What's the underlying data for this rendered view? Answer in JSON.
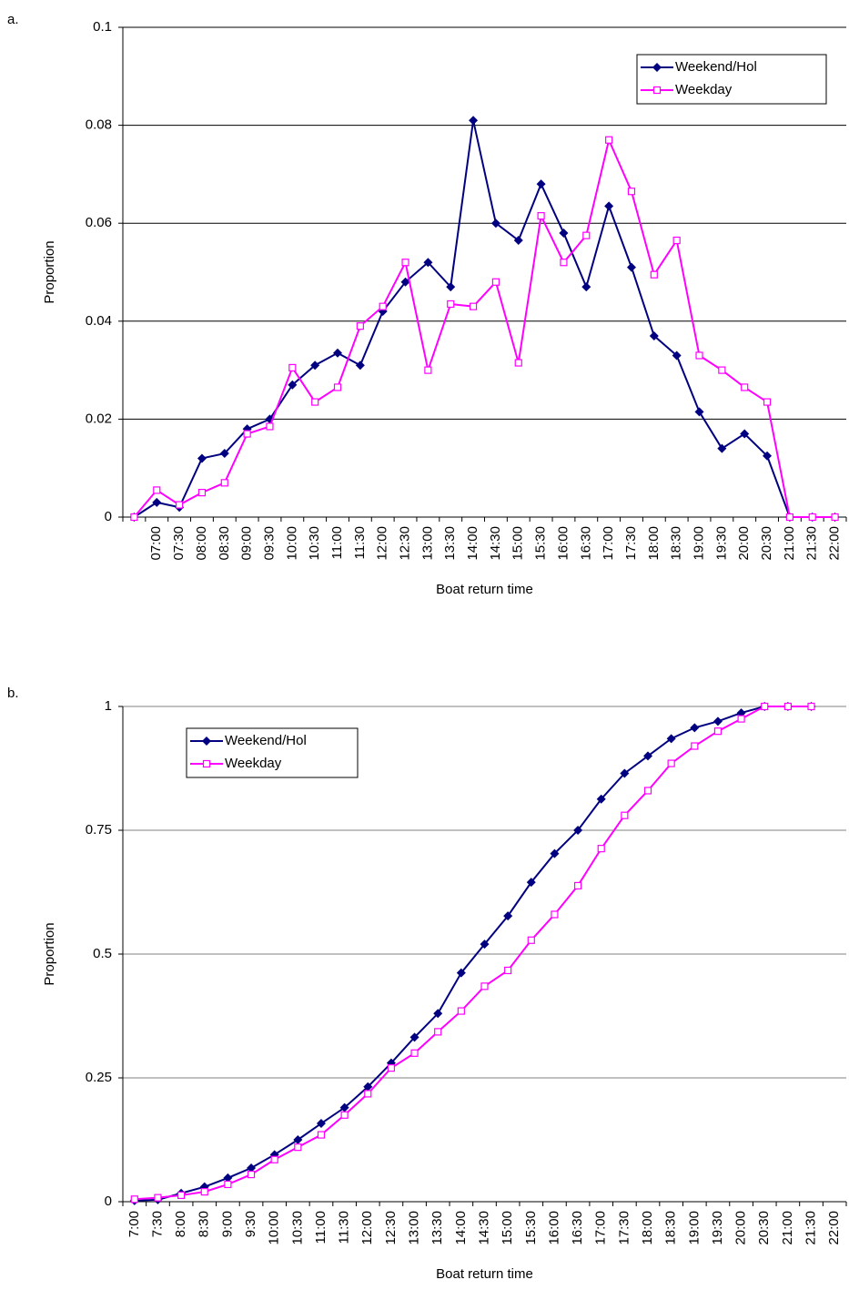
{
  "chart_data": [
    {
      "type": "line",
      "panel": "a.",
      "x_label": "Boat return time",
      "y_label": "Proportion",
      "categories": [
        null,
        "07:00",
        "07:30",
        "08:00",
        "08:30",
        "09:00",
        "09:30",
        "10:00",
        "10:30",
        "11:00",
        "11:30",
        "12:00",
        "12:30",
        "13:00",
        "13:30",
        "14:00",
        "14:30",
        "15:00",
        "15:30",
        "16:00",
        "16:30",
        "17:00",
        "17:30",
        "18:00",
        "18:30",
        "19:00",
        "19:30",
        "20:00",
        "20:30",
        "21:00",
        "21:30",
        "22:00"
      ],
      "series": [
        {
          "name": "Weekend/Hol",
          "color": "#000080",
          "marker": "diamond",
          "values": [
            0,
            0.003,
            0.002,
            0.012,
            0.013,
            0.018,
            0.02,
            0.027,
            0.031,
            0.0335,
            0.031,
            0.042,
            0.048,
            0.052,
            0.047,
            0.081,
            0.06,
            0.0565,
            0.068,
            0.058,
            0.047,
            0.0635,
            0.051,
            0.037,
            0.033,
            0.0215,
            0.014,
            0.017,
            0.0125,
            0,
            0,
            0
          ]
        },
        {
          "name": "Weekday",
          "color": "#ff00ff",
          "marker": "square",
          "values": [
            0,
            0.0055,
            0.0025,
            0.005,
            0.007,
            0.017,
            0.0185,
            0.0305,
            0.0235,
            0.0265,
            0.039,
            0.043,
            0.052,
            0.03,
            0.0435,
            0.043,
            0.048,
            0.0315,
            0.0615,
            0.052,
            0.0575,
            0.077,
            0.0665,
            0.0495,
            0.0565,
            0.033,
            0.03,
            0.0265,
            0.0235,
            0,
            0,
            0
          ]
        }
      ],
      "ylim": [
        0,
        0.1
      ],
      "yticks": [
        0,
        0.02,
        0.04,
        0.06,
        0.08,
        0.1
      ],
      "grid": true,
      "grid_color": "#000000",
      "legend": "top-right"
    },
    {
      "type": "line",
      "panel": "b.",
      "x_label": "Boat return time",
      "y_label": "Proportion",
      "categories": [
        "7:00",
        "7:30",
        "8:00",
        "8:30",
        "9:00",
        "9:30",
        "10:00",
        "10:30",
        "11:00",
        "11:30",
        "12:00",
        "12:30",
        "13:00",
        "13:30",
        "14:00",
        "14:30",
        "15:00",
        "15:30",
        "16:00",
        "16:30",
        "17:00",
        "17:30",
        "18:00",
        "18:30",
        "19:00",
        "19:30",
        "20:00",
        "20:30",
        "21:00",
        "21:30",
        "22:00"
      ],
      "series": [
        {
          "name": "Weekend/Hol",
          "color": "#000080",
          "marker": "diamond",
          "values": [
            0.002,
            0.004,
            0.017,
            0.03,
            0.048,
            0.068,
            0.095,
            0.125,
            0.158,
            0.19,
            0.232,
            0.28,
            0.332,
            0.38,
            0.462,
            0.52,
            0.577,
            0.645,
            0.703,
            0.75,
            0.813,
            0.865,
            0.9,
            0.935,
            0.957,
            0.97,
            0.987,
            1,
            1,
            1,
            null
          ]
        },
        {
          "name": "Weekday",
          "color": "#ff00ff",
          "marker": "square",
          "values": [
            0.005,
            0.008,
            0.013,
            0.02,
            0.035,
            0.055,
            0.085,
            0.11,
            0.135,
            0.175,
            0.218,
            0.27,
            0.3,
            0.343,
            0.385,
            0.435,
            0.467,
            0.528,
            0.58,
            0.638,
            0.713,
            0.78,
            0.83,
            0.885,
            0.92,
            0.95,
            0.975,
            1,
            1,
            1,
            null
          ]
        }
      ],
      "ylim": [
        0,
        1
      ],
      "yticks": [
        0,
        0.25,
        0.5,
        0.75,
        1
      ],
      "grid": true,
      "grid_color": "#808080",
      "legend": "top-left"
    }
  ]
}
